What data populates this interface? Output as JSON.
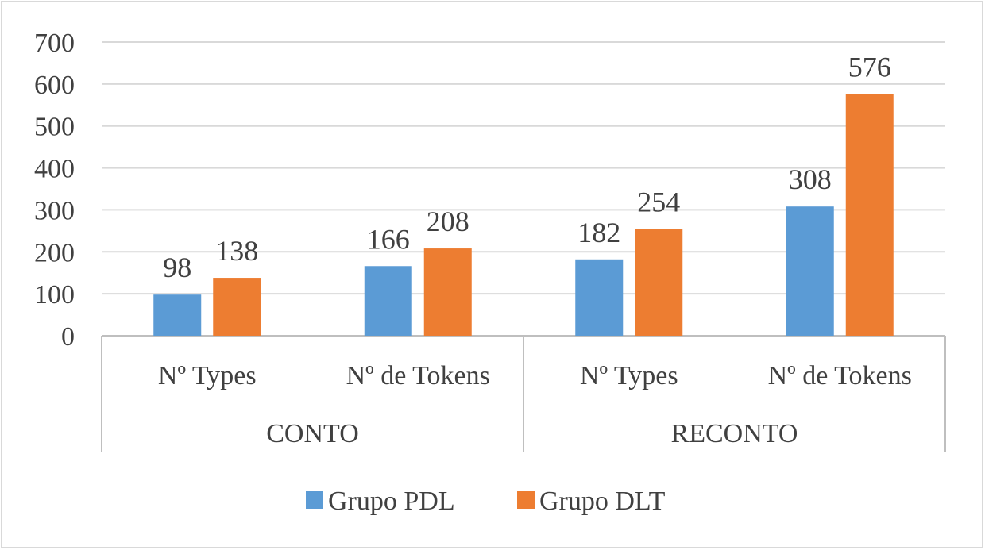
{
  "chart_data": {
    "type": "bar",
    "groups": [
      {
        "name": "CONTO",
        "categories": [
          "Nº Types",
          "Nº de Tokens"
        ]
      },
      {
        "name": "RECONTO",
        "categories": [
          "Nº Types",
          "Nº de Tokens"
        ]
      }
    ],
    "categories": [
      "Nº Types",
      "Nº de Tokens",
      "Nº Types",
      "Nº de Tokens"
    ],
    "series": [
      {
        "name": "Grupo PDL",
        "color": "#5b9bd5",
        "values": [
          98,
          166,
          182,
          308
        ]
      },
      {
        "name": "Grupo DLT",
        "color": "#ed7d31",
        "values": [
          138,
          208,
          254,
          576
        ]
      }
    ],
    "yticks": [
      0,
      100,
      200,
      300,
      400,
      500,
      600,
      700
    ],
    "ylim": [
      0,
      700
    ],
    "grid": true,
    "legend": "bottom",
    "data_labels": true
  }
}
